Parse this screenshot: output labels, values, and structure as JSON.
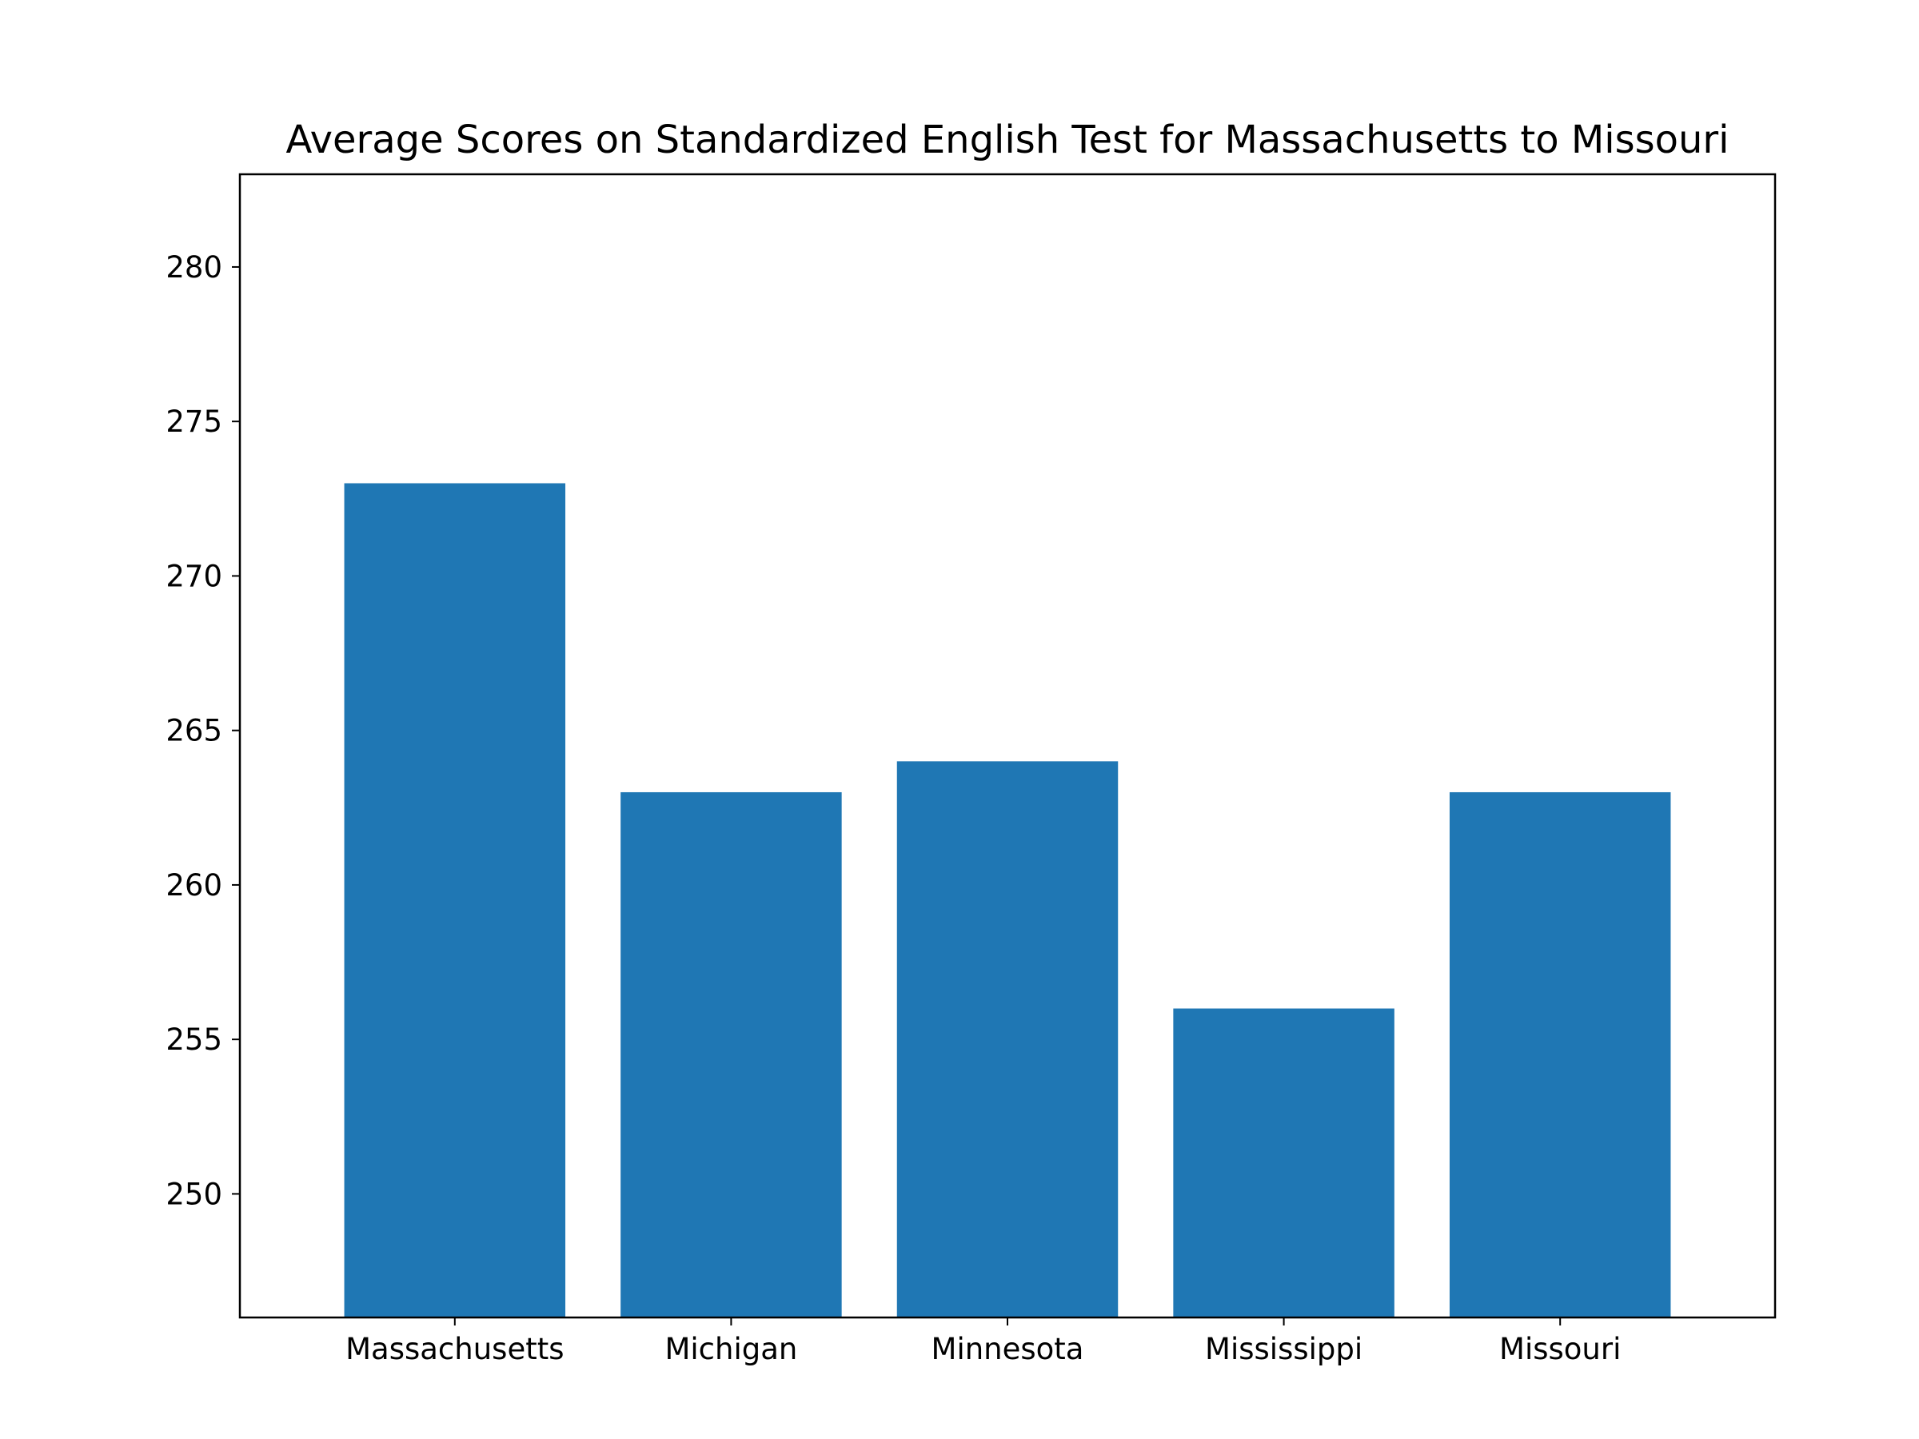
{
  "chart_data": {
    "type": "bar",
    "title": "Average Scores on Standardized English Test for Massachusetts to Missouri",
    "xlabel": "",
    "ylabel": "",
    "categories": [
      "Massachusetts",
      "Michigan",
      "Minnesota",
      "Mississippi",
      "Missouri"
    ],
    "values": [
      273,
      263,
      264,
      256,
      263
    ],
    "ylim": [
      246,
      283
    ],
    "yticks": [
      250,
      255,
      260,
      265,
      270,
      275,
      280
    ],
    "bar_color": "#1f77b4",
    "grid": false,
    "legend": "none"
  }
}
